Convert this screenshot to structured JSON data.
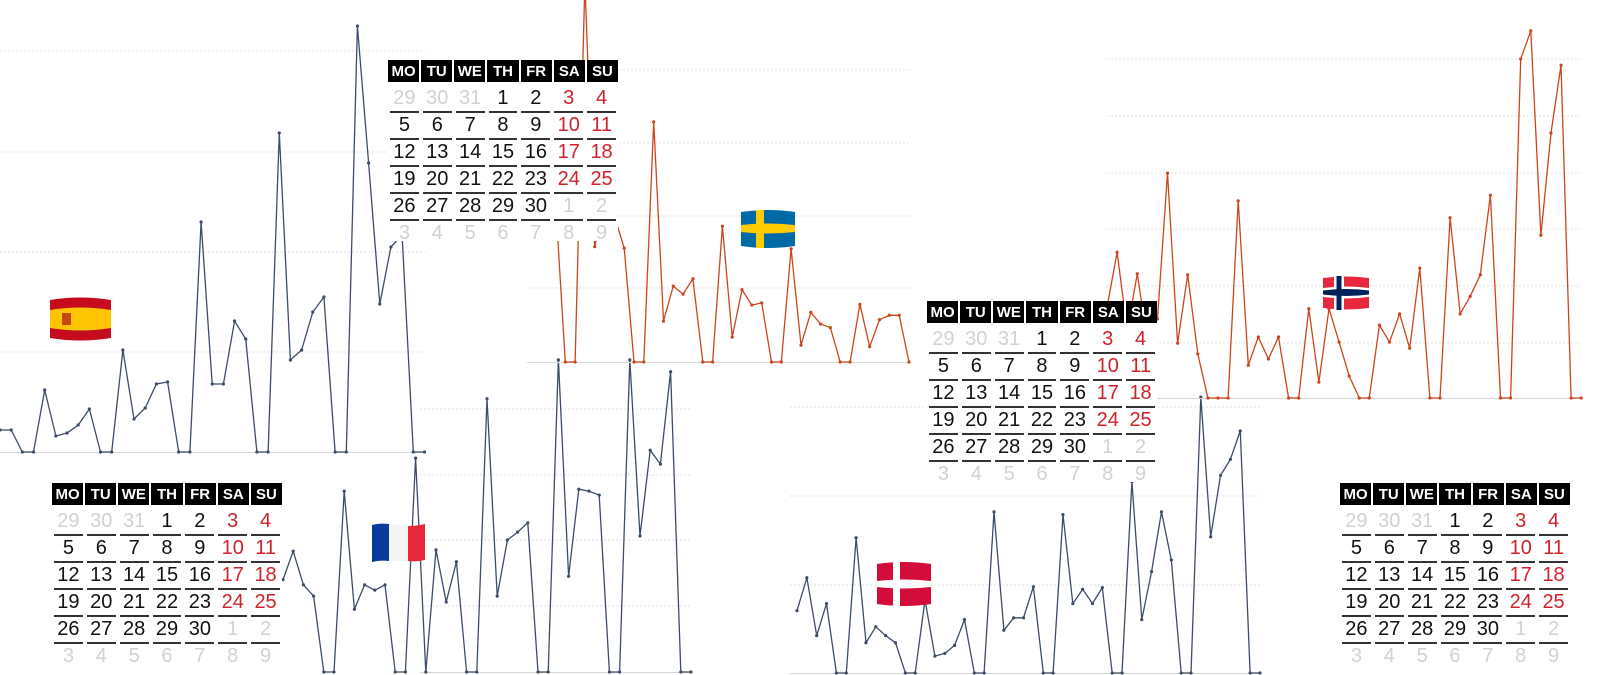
{
  "colors": {
    "slate_line": "#3d4c68",
    "orange_line": "#c9461c",
    "weekend": "#d0222a",
    "muted": "#d2d2d2",
    "grid": "#e2e2e2"
  },
  "calendar": {
    "headers": [
      "MO",
      "TU",
      "WE",
      "TH",
      "FR",
      "SA",
      "SU"
    ],
    "weeks": [
      [
        {
          "d": "29",
          "t": "muted"
        },
        {
          "d": "30",
          "t": "muted"
        },
        {
          "d": "31",
          "t": "muted"
        },
        {
          "d": "1",
          "t": "day"
        },
        {
          "d": "2",
          "t": "day"
        },
        {
          "d": "3",
          "t": "weekend"
        },
        {
          "d": "4",
          "t": "weekend"
        }
      ],
      [
        {
          "d": "5",
          "t": "day"
        },
        {
          "d": "6",
          "t": "day"
        },
        {
          "d": "7",
          "t": "day"
        },
        {
          "d": "8",
          "t": "day"
        },
        {
          "d": "9",
          "t": "day"
        },
        {
          "d": "10",
          "t": "weekend"
        },
        {
          "d": "11",
          "t": "weekend"
        }
      ],
      [
        {
          "d": "12",
          "t": "day"
        },
        {
          "d": "13",
          "t": "day"
        },
        {
          "d": "14",
          "t": "day"
        },
        {
          "d": "15",
          "t": "day"
        },
        {
          "d": "16",
          "t": "day"
        },
        {
          "d": "17",
          "t": "weekend"
        },
        {
          "d": "18",
          "t": "weekend"
        }
      ],
      [
        {
          "d": "19",
          "t": "day"
        },
        {
          "d": "20",
          "t": "day"
        },
        {
          "d": "21",
          "t": "day"
        },
        {
          "d": "22",
          "t": "day"
        },
        {
          "d": "23",
          "t": "day"
        },
        {
          "d": "24",
          "t": "weekend"
        },
        {
          "d": "25",
          "t": "weekend"
        }
      ],
      [
        {
          "d": "26",
          "t": "day"
        },
        {
          "d": "27",
          "t": "day"
        },
        {
          "d": "28",
          "t": "day"
        },
        {
          "d": "29",
          "t": "day"
        },
        {
          "d": "30",
          "t": "day"
        },
        {
          "d": "1",
          "t": "muted"
        },
        {
          "d": "2",
          "t": "muted"
        }
      ]
    ],
    "faded_week": [
      "3",
      "4",
      "5",
      "6",
      "7",
      "8",
      "9"
    ]
  },
  "chart_data": [
    {
      "type": "line",
      "name": "spain",
      "flag_icon": "spain-flag-icon",
      "color": "#3d4c68",
      "ylim": [
        0,
        45
      ],
      "grid": true,
      "values": [
        2.2,
        2.2,
        0,
        0,
        6.2,
        1.6,
        1.9,
        2.7,
        4.3,
        0,
        0,
        10.2,
        3.3,
        4.4,
        6.8,
        7,
        0,
        0,
        23,
        6.8,
        6.8,
        13.1,
        11.3,
        0,
        0,
        31.9,
        9.2,
        10.2,
        14,
        15.5,
        0,
        0,
        42.6,
        28.9,
        14.8,
        20.5,
        21.7,
        0,
        0
      ]
    },
    {
      "type": "line",
      "name": "sweden",
      "flag_icon": "sweden-flag-icon",
      "color": "#c9461c",
      "ylim": [
        0,
        50
      ],
      "grid": true,
      "values": [
        20,
        25,
        18,
        22,
        0,
        0,
        52,
        15.8,
        22,
        20,
        15.6,
        0,
        0,
        32.9,
        5.6,
        10.4,
        9.3,
        11.4,
        0,
        0,
        18.6,
        3.4,
        9.9,
        7.8,
        8.1,
        0,
        0,
        15.5,
        2.3,
        6.8,
        5.2,
        4.7,
        0,
        0,
        7.9,
        2.1,
        5.8,
        6.4,
        6.4,
        0
      ]
    },
    {
      "type": "line",
      "name": "norway",
      "flag_icon": "norway-flag-icon",
      "color": "#c9461c",
      "ylim": [
        0,
        70
      ],
      "grid": true,
      "values": [
        16,
        25.8,
        12,
        22,
        10,
        14,
        39.8,
        9.7,
        21.8,
        7.8,
        0,
        0,
        0,
        34.9,
        5.8,
        10.8,
        6.9,
        10.8,
        0,
        0,
        15.8,
        2.8,
        15.8,
        9.9,
        3.9,
        0,
        0,
        12.9,
        9.9,
        14.9,
        8.8,
        23,
        0,
        0,
        31.9,
        14.9,
        18,
        21.8,
        35.9,
        0,
        0,
        60,
        65,
        28.8,
        46.9,
        58.9,
        0,
        0
      ]
    },
    {
      "type": "line",
      "name": "france",
      "flag_icon": "france-flag-icon",
      "color": "#3d4c68",
      "ylim": [
        0,
        50
      ],
      "grid": true,
      "values": [
        14,
        18.3,
        13.2,
        11.5,
        0,
        0,
        27.4,
        9.5,
        13.2,
        12.4,
        13.2,
        0,
        0,
        32.4,
        0,
        18.5,
        10.6,
        16.7,
        0,
        0,
        41.4,
        11.5,
        20,
        21.2,
        22.6,
        0,
        0,
        47.3,
        14.5,
        27.7,
        27.4,
        26.8,
        0,
        0,
        47.3,
        20.6,
        33.6,
        31.5,
        45.5,
        0,
        0
      ]
    },
    {
      "type": "line",
      "name": "denmark",
      "flag_icon": "denmark-flag-icon",
      "color": "#3d4c68",
      "ylim": [
        0,
        32
      ],
      "grid": true,
      "values": [
        7,
        10.7,
        4.2,
        7.8,
        0,
        0,
        15.2,
        3.4,
        5.2,
        4.2,
        3.4,
        0,
        0,
        8.2,
        1.9,
        2.2,
        3.1,
        6,
        0,
        0,
        18.1,
        4.8,
        6.2,
        6.2,
        9.7,
        0,
        0,
        17.8,
        7.8,
        9.4,
        7.8,
        9.6,
        0,
        0,
        21.5,
        6,
        11.4,
        18.1,
        12.7,
        0,
        0,
        31,
        15.3,
        22.2,
        24,
        27.2,
        0,
        0
      ]
    }
  ]
}
